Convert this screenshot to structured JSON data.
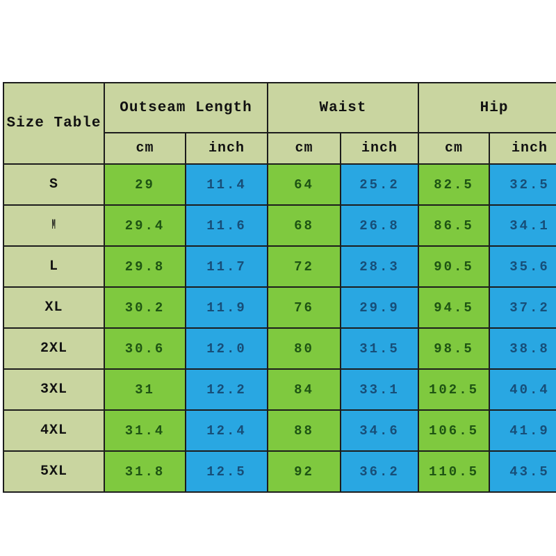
{
  "table": {
    "corner_label": "Size Table",
    "groups": [
      {
        "label": "Outseam Length"
      },
      {
        "label": "Waist"
      },
      {
        "label": "Hip"
      }
    ],
    "unit_headers": [
      "cm",
      "inch"
    ],
    "rows": [
      {
        "size": "S",
        "values": [
          "29",
          "11.4",
          "64",
          "25.2",
          "82.5",
          "32.5"
        ]
      },
      {
        "size": "M",
        "values": [
          "29.4",
          "11.6",
          "68",
          "26.8",
          "86.5",
          "34.1"
        ]
      },
      {
        "size": "L",
        "values": [
          "29.8",
          "11.7",
          "72",
          "28.3",
          "90.5",
          "35.6"
        ]
      },
      {
        "size": "XL",
        "values": [
          "30.2",
          "11.9",
          "76",
          "29.9",
          "94.5",
          "37.2"
        ]
      },
      {
        "size": "2XL",
        "values": [
          "30.6",
          "12.0",
          "80",
          "31.5",
          "98.5",
          "38.8"
        ]
      },
      {
        "size": "3XL",
        "values": [
          "31",
          "12.2",
          "84",
          "33.1",
          "102.5",
          "40.4"
        ]
      },
      {
        "size": "4XL",
        "values": [
          "31.4",
          "12.4",
          "88",
          "34.6",
          "106.5",
          "41.9"
        ]
      },
      {
        "size": "5XL",
        "values": [
          "31.8",
          "12.5",
          "92",
          "36.2",
          "110.5",
          "43.5"
        ]
      }
    ],
    "colors": {
      "header_bg": "#c9d5a0",
      "header_text": "#111111",
      "green_bg": "#7fc93f",
      "green_text": "#1e5413",
      "blue_bg": "#29a7e2",
      "blue_text": "#174e78",
      "border": "#1c1c1c"
    }
  },
  "chart_data": {
    "type": "table",
    "title": "Size Table",
    "column_groups": [
      "Outseam Length",
      "Waist",
      "Hip"
    ],
    "columns": [
      "Size",
      "Outseam Length cm",
      "Outseam Length inch",
      "Waist cm",
      "Waist inch",
      "Hip cm",
      "Hip inch"
    ],
    "rows": [
      [
        "S",
        29,
        11.4,
        64,
        25.2,
        82.5,
        32.5
      ],
      [
        "M",
        29.4,
        11.6,
        68,
        26.8,
        86.5,
        34.1
      ],
      [
        "L",
        29.8,
        11.7,
        72,
        28.3,
        90.5,
        35.6
      ],
      [
        "XL",
        30.2,
        11.9,
        76,
        29.9,
        94.5,
        37.2
      ],
      [
        "2XL",
        30.6,
        12.0,
        80,
        31.5,
        98.5,
        38.8
      ],
      [
        "3XL",
        31,
        12.2,
        84,
        33.1,
        102.5,
        40.4
      ],
      [
        "4XL",
        31.4,
        12.4,
        88,
        34.6,
        106.5,
        41.9
      ],
      [
        "5XL",
        31.8,
        12.5,
        92,
        36.2,
        110.5,
        43.5
      ]
    ]
  }
}
